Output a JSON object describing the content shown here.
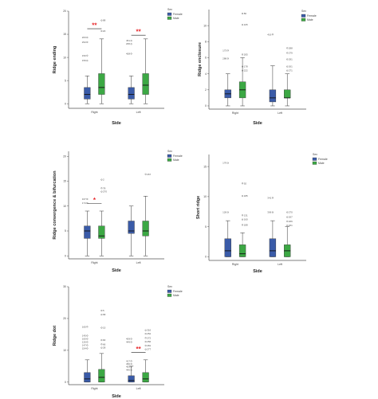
{
  "colors": {
    "female": "#3a5ba8",
    "male": "#3ca844",
    "sig": "#e8262a",
    "axis": "#555555"
  },
  "chart_data": [
    {
      "type": "box",
      "ylabel": "Ridge ending",
      "xlabel": "Side",
      "categories": [
        "Right",
        "Left"
      ],
      "legend": {
        "title": "Sex",
        "entries": [
          "Female",
          "Male"
        ],
        "placement": "top-right"
      },
      "ylim": [
        -1,
        20
      ],
      "yticks": [
        "0",
        "5",
        "10",
        "15",
        "20"
      ],
      "yticks_values": [
        0,
        5,
        10,
        15,
        20
      ],
      "boxes": [
        {
          "cat": 0,
          "series": 0,
          "min": 0,
          "q1": 1,
          "median": 2,
          "q3": 3.5,
          "max": 6
        },
        {
          "cat": 0,
          "series": 1,
          "min": 0,
          "q1": 2,
          "median": 3.5,
          "q3": 6.5,
          "max": 14
        },
        {
          "cat": 1,
          "series": 0,
          "min": 0,
          "q1": 1,
          "median": 2,
          "q3": 3.5,
          "max": 6
        },
        {
          "cat": 1,
          "series": 1,
          "min": 0,
          "q1": 2,
          "median": 4,
          "q3": 6.5,
          "max": 14
        }
      ],
      "outliers": [
        {
          "cat": 0,
          "series": 1,
          "y": 18,
          "label": "88"
        },
        {
          "cat": 0,
          "series": 1,
          "y": 15.7,
          "label": "20"
        },
        {
          "cat": 0,
          "series": 0,
          "y": 14.3,
          "label": "203"
        },
        {
          "cat": 0,
          "series": 0,
          "y": 13.3,
          "label": "294"
        },
        {
          "cat": 0,
          "series": 0,
          "y": 10.4,
          "label": "150"
        },
        {
          "cat": 0,
          "series": 0,
          "y": 9.3,
          "label": "159"
        },
        {
          "cat": 1,
          "series": 0,
          "y": 13.6,
          "label": "451"
        },
        {
          "cat": 1,
          "series": 0,
          "y": 12.9,
          "label": "295"
        },
        {
          "cat": 1,
          "series": 0,
          "y": 10.8,
          "label": "408"
        }
      ],
      "significance": [
        {
          "cat": 0,
          "label": "**",
          "y": 16.2
        },
        {
          "cat": 1,
          "label": "**",
          "y": 14.8
        }
      ]
    },
    {
      "type": "box",
      "ylabel": "Ridge enclosure",
      "xlabel": "Side",
      "categories": [
        "Right",
        "Left"
      ],
      "legend": {
        "title": "Sex",
        "entries": [
          "Female",
          "Male"
        ],
        "placement": "top-right"
      },
      "ylim": [
        -0.4,
        12
      ],
      "yticks": [
        "0",
        "2",
        "4",
        "6",
        "8",
        "10"
      ],
      "yticks_values": [
        0,
        2,
        4,
        6,
        8,
        10
      ],
      "boxes": [
        {
          "cat": 0,
          "series": 0,
          "min": 0,
          "q1": 1,
          "median": 1.5,
          "q3": 2,
          "max": 4
        },
        {
          "cat": 0,
          "series": 1,
          "min": 0,
          "q1": 1,
          "median": 2,
          "q3": 3,
          "max": 6
        },
        {
          "cat": 1,
          "series": 0,
          "min": 0,
          "q1": 0.5,
          "median": 1,
          "q3": 2,
          "max": 5
        },
        {
          "cat": 1,
          "series": 1,
          "min": 0,
          "q1": 1,
          "median": 1,
          "q3": 2,
          "max": 4
        }
      ],
      "outliers": [
        {
          "cat": 0,
          "series": 1,
          "y": 11.5,
          "label": "80"
        },
        {
          "cat": 0,
          "series": 1,
          "y": 10.1,
          "label": "105"
        },
        {
          "cat": 0,
          "series": 0,
          "y": 6.9,
          "label": "173"
        },
        {
          "cat": 0,
          "series": 1,
          "y": 6.4,
          "label": "205"
        },
        {
          "cat": 0,
          "series": 0,
          "y": 5.9,
          "label": "286"
        },
        {
          "cat": 0,
          "series": 1,
          "y": 4.9,
          "label": "178"
        },
        {
          "cat": 0,
          "series": 1,
          "y": 4.4,
          "label": "222"
        },
        {
          "cat": 1,
          "series": 0,
          "y": 8.9,
          "label": "416"
        },
        {
          "cat": 1,
          "series": 1,
          "y": 7.2,
          "label": "288"
        },
        {
          "cat": 1,
          "series": 1,
          "y": 6.6,
          "label": "279"
        },
        {
          "cat": 1,
          "series": 1,
          "y": 5.8,
          "label": "291"
        },
        {
          "cat": 1,
          "series": 1,
          "y": 4.9,
          "label": "261"
        },
        {
          "cat": 1,
          "series": 1,
          "y": 4.4,
          "label": "271"
        }
      ],
      "significance": []
    },
    {
      "type": "box",
      "ylabel": "Ridge convergence & bifurcation",
      "xlabel": "Side",
      "categories": [
        "Right",
        "Left"
      ],
      "legend": {
        "title": "Sex",
        "entries": [
          "Female",
          "Male"
        ],
        "placement": "top-right"
      },
      "ylim": [
        -0.6,
        21
      ],
      "yticks": [
        "0",
        "5",
        "10",
        "15",
        "20"
      ],
      "yticks_values": [
        0,
        5,
        10,
        15,
        20
      ],
      "boxes": [
        {
          "cat": 0,
          "series": 0,
          "min": 0,
          "q1": 3.5,
          "median": 5,
          "q3": 6,
          "max": 9
        },
        {
          "cat": 0,
          "series": 1,
          "min": 0,
          "q1": 3.5,
          "median": 4,
          "q3": 6,
          "max": 9
        },
        {
          "cat": 1,
          "series": 0,
          "min": 0,
          "q1": 4.5,
          "median": 5,
          "q3": 7,
          "max": 10
        },
        {
          "cat": 1,
          "series": 1,
          "min": 0,
          "q1": 4,
          "median": 5,
          "q3": 7,
          "max": 12
        }
      ],
      "outliers": [
        {
          "cat": 0,
          "series": 1,
          "y": 15.3,
          "label": "2"
        },
        {
          "cat": 0,
          "series": 1,
          "y": 13.6,
          "label": "78"
        },
        {
          "cat": 0,
          "series": 1,
          "y": 12.9,
          "label": "270"
        },
        {
          "cat": 0,
          "series": 0,
          "y": 11.4,
          "label": "167"
        },
        {
          "cat": 0,
          "series": 0,
          "y": 10.6,
          "label": "174"
        },
        {
          "cat": 1,
          "series": 1,
          "y": 16.4,
          "label": "267"
        }
      ],
      "significance": [
        {
          "cat": 0,
          "label": "*",
          "y": 10.5
        }
      ]
    },
    {
      "type": "box",
      "ylabel": "Short ridge",
      "xlabel": "Side",
      "categories": [
        "Right",
        "Left"
      ],
      "legend": {
        "title": "Sex",
        "entries": [
          "Female",
          "Male"
        ],
        "placement": "top-right"
      },
      "ylim": [
        -0.6,
        17
      ],
      "yticks": [
        "0",
        "5",
        "10",
        "15"
      ],
      "yticks_values": [
        0,
        5,
        10,
        15
      ],
      "boxes": [
        {
          "cat": 0,
          "series": 0,
          "min": 0,
          "q1": 0,
          "median": 1,
          "q3": 3,
          "max": 6
        },
        {
          "cat": 0,
          "series": 1,
          "min": 0,
          "q1": 0,
          "median": 0.5,
          "q3": 2,
          "max": 4
        },
        {
          "cat": 1,
          "series": 0,
          "min": 0,
          "q1": 0,
          "median": 1,
          "q3": 3,
          "max": 6
        },
        {
          "cat": 1,
          "series": 1,
          "min": 0,
          "q1": 0,
          "median": 1,
          "q3": 2,
          "max": 5
        }
      ],
      "outliers": [
        {
          "cat": 0,
          "series": 0,
          "y": 15.6,
          "label": "176"
        },
        {
          "cat": 0,
          "series": 1,
          "y": 12.2,
          "label": "92"
        },
        {
          "cat": 0,
          "series": 1,
          "y": 10.1,
          "label": "185"
        },
        {
          "cat": 0,
          "series": 0,
          "y": 7.4,
          "label": "126"
        },
        {
          "cat": 0,
          "series": 1,
          "y": 6.9,
          "label": "131"
        },
        {
          "cat": 0,
          "series": 1,
          "y": 6.2,
          "label": "160"
        },
        {
          "cat": 0,
          "series": 1,
          "y": 5.3,
          "label": "188"
        },
        {
          "cat": 1,
          "series": 0,
          "y": 9.8,
          "label": "341"
        },
        {
          "cat": 1,
          "series": 0,
          "y": 7.4,
          "label": "306"
        },
        {
          "cat": 1,
          "series": 1,
          "y": 7.4,
          "label": "270"
        },
        {
          "cat": 1,
          "series": 1,
          "y": 6.6,
          "label": "267"
        },
        {
          "cat": 1,
          "series": 1,
          "y": 5.9,
          "label": "266"
        },
        {
          "cat": 1,
          "series": 1,
          "y": 5.2,
          "label": "261"
        }
      ],
      "significance": []
    },
    {
      "type": "box",
      "ylabel": "Ridge dot",
      "xlabel": "Side",
      "categories": [
        "Right",
        "Left"
      ],
      "legend": {
        "title": "Sex",
        "entries": [
          "Female",
          "Male"
        ],
        "placement": "top-right"
      },
      "ylim": [
        -0.8,
        30
      ],
      "yticks": [
        "0",
        "10",
        "20",
        "30"
      ],
      "yticks_values": [
        0,
        10,
        20,
        30
      ],
      "boxes": [
        {
          "cat": 0,
          "series": 0,
          "min": 0,
          "q1": 0,
          "median": 1,
          "q3": 3,
          "max": 7
        },
        {
          "cat": 0,
          "series": 1,
          "min": 0,
          "q1": 0,
          "median": 1.5,
          "q3": 4,
          "max": 9
        },
        {
          "cat": 1,
          "series": 0,
          "min": 0,
          "q1": 0,
          "median": 0.5,
          "q3": 2,
          "max": 5
        },
        {
          "cat": 1,
          "series": 1,
          "min": 0,
          "q1": 0,
          "median": 1,
          "q3": 3,
          "max": 7
        }
      ],
      "outliers": [
        {
          "cat": 0,
          "series": 1,
          "y": 22.5,
          "label": "5"
        },
        {
          "cat": 0,
          "series": 1,
          "y": 21.2,
          "label": "58"
        },
        {
          "cat": 0,
          "series": 0,
          "y": 17.4,
          "label": "165"
        },
        {
          "cat": 0,
          "series": 1,
          "y": 17.1,
          "label": "15"
        },
        {
          "cat": 0,
          "series": 0,
          "y": 14.6,
          "label": "145"
        },
        {
          "cat": 0,
          "series": 0,
          "y": 13.6,
          "label": "160"
        },
        {
          "cat": 0,
          "series": 0,
          "y": 12.6,
          "label": "126"
        },
        {
          "cat": 0,
          "series": 0,
          "y": 11.6,
          "label": "147"
        },
        {
          "cat": 0,
          "series": 0,
          "y": 10.6,
          "label": "154"
        },
        {
          "cat": 0,
          "series": 1,
          "y": 13.2,
          "label": "90"
        },
        {
          "cat": 0,
          "series": 1,
          "y": 11.9,
          "label": "66"
        },
        {
          "cat": 0,
          "series": 1,
          "y": 10.8,
          "label": "28"
        },
        {
          "cat": 1,
          "series": 1,
          "y": 16.3,
          "label": "316"
        },
        {
          "cat": 1,
          "series": 1,
          "y": 15.2,
          "label": "252"
        },
        {
          "cat": 1,
          "series": 1,
          "y": 13.9,
          "label": "272"
        },
        {
          "cat": 1,
          "series": 1,
          "y": 12.7,
          "label": "256"
        },
        {
          "cat": 1,
          "series": 1,
          "y": 11.5,
          "label": "281"
        },
        {
          "cat": 1,
          "series": 1,
          "y": 10.3,
          "label": "277"
        },
        {
          "cat": 1,
          "series": 0,
          "y": 13.6,
          "label": "409"
        },
        {
          "cat": 1,
          "series": 0,
          "y": 12.6,
          "label": "449"
        },
        {
          "cat": 1,
          "series": 0,
          "y": 6.6,
          "label": "417"
        },
        {
          "cat": 1,
          "series": 0,
          "y": 5.7,
          "label": "450"
        },
        {
          "cat": 1,
          "series": 0,
          "y": 4.8,
          "label": "453"
        },
        {
          "cat": 1,
          "series": 0,
          "y": 3.8,
          "label": "440"
        }
      ],
      "significance": [
        {
          "cat": 1,
          "label": "**",
          "y": 9.3
        }
      ]
    }
  ]
}
